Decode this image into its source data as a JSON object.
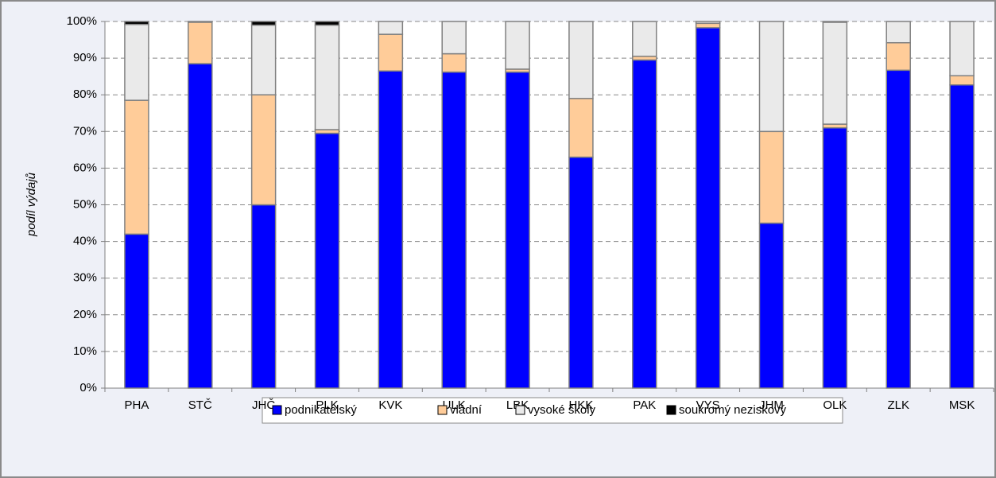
{
  "chart_data": {
    "type": "stacked_bar",
    "ylabel": "podíl výdajů",
    "categories": [
      "PHA",
      "STČ",
      "JHČ",
      "PLK",
      "KVK",
      "ULK",
      "LBK",
      "HKK",
      "PAK",
      "VYS",
      "JHM",
      "OLK",
      "ZLK",
      "MSK"
    ],
    "series": [
      {
        "name": "podnikatelský",
        "color": "#0000ff",
        "values": [
          42,
          88.5,
          50,
          69.5,
          86.5,
          86.2,
          86.2,
          63,
          89.5,
          98.3,
          45,
          71,
          86.7,
          82.7
        ]
      },
      {
        "name": "vládní",
        "color": "#ffcc99",
        "values": [
          36.5,
          11.3,
          30,
          1,
          10,
          5,
          0.8,
          16,
          1,
          1.2,
          25,
          1,
          7.5,
          2.5
        ]
      },
      {
        "name": "vysoké školy",
        "color": "#eaeaea",
        "values": [
          20.7,
          0.2,
          19,
          28.5,
          3.5,
          8.8,
          13,
          21,
          9.5,
          0.5,
          30,
          27.8,
          5.8,
          14.8
        ]
      },
      {
        "name": "soukromý neziskový",
        "color": "#000000",
        "values": [
          0.8,
          0,
          1,
          1,
          0,
          0,
          0,
          0,
          0,
          0,
          0,
          0.2,
          0,
          0
        ]
      }
    ],
    "ylim": [
      0,
      100
    ],
    "yticks": [
      {
        "value": 0,
        "label": "0%"
      },
      {
        "value": 10,
        "label": "10%"
      },
      {
        "value": 20,
        "label": "20%"
      },
      {
        "value": 30,
        "label": "30%"
      },
      {
        "value": 40,
        "label": "40%"
      },
      {
        "value": 50,
        "label": "50%"
      },
      {
        "value": 60,
        "label": "60%"
      },
      {
        "value": 70,
        "label": "70%"
      },
      {
        "value": 80,
        "label": "80%"
      },
      {
        "value": 90,
        "label": "90%"
      },
      {
        "value": 100,
        "label": "100%"
      }
    ],
    "grid": true,
    "legend": "bottom"
  }
}
